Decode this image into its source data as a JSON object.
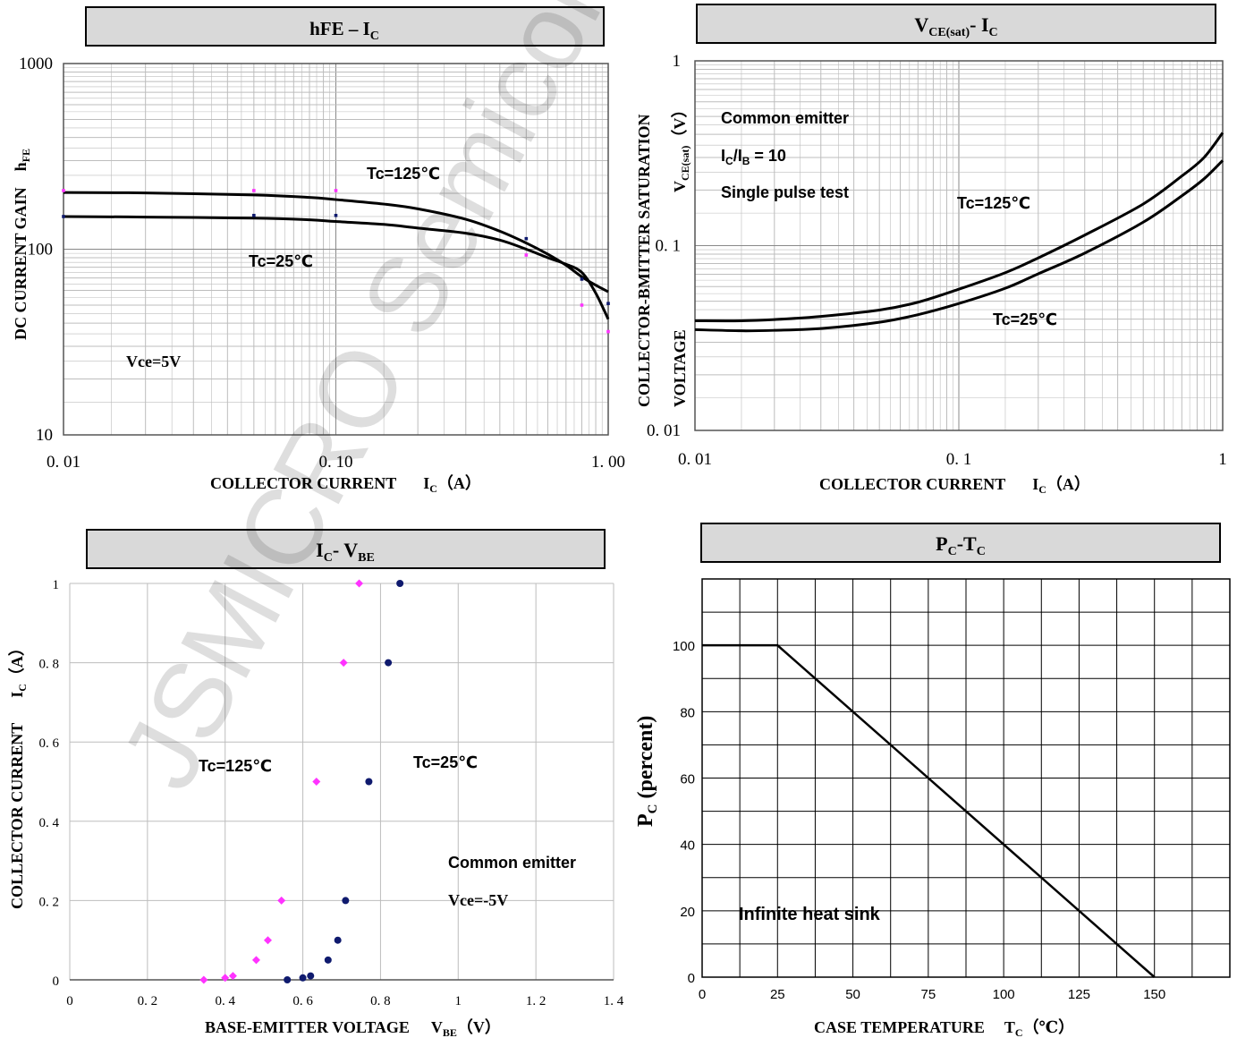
{
  "watermark": "JSMICRO Semiconductor",
  "colors": {
    "hot": "#ff33ff",
    "cold": "#0f1a6e",
    "grid": "#bdbdbd",
    "title_bg": "#d9d9d9"
  },
  "chart_data": [
    {
      "id": "hfe",
      "type": "line",
      "title": "hFE – I",
      "title_sub": "C",
      "xlabel": "COLLECTOR CURRENT",
      "xlabel_unit_main": "I",
      "xlabel_unit_sub": "C",
      "xlabel_unit_tail": "（A）",
      "ylabel_main": "DC CURRENT GAIN",
      "ylabel_sym": "h",
      "ylabel_sub": "FE",
      "xscale": "log",
      "yscale": "log",
      "xlim": [
        0.01,
        1.0
      ],
      "ylim": [
        10,
        1000
      ],
      "xticks": [
        0.01,
        0.1,
        1.0
      ],
      "xtick_labels": [
        "0. 01",
        "0. 10",
        "1. 00"
      ],
      "yticks": [
        10,
        100,
        1000
      ],
      "ytick_labels": [
        "10",
        "100",
        "1000"
      ],
      "annotations": [
        "Tc=125℃",
        "Tc=25℃",
        "Vce=5V"
      ],
      "series": [
        {
          "color": "#000000",
          "x": [
            0.01,
            0.02,
            0.05,
            0.08,
            0.1,
            0.15,
            0.2,
            0.3,
            0.4,
            0.5,
            0.6,
            0.7,
            0.8,
            0.9,
            1.0
          ],
          "y": [
            202,
            201,
            196,
            190,
            185,
            175,
            165,
            145,
            125,
            108,
            94,
            82,
            71,
            64,
            59
          ]
        },
        {
          "color": "#000000",
          "x": [
            0.01,
            0.02,
            0.05,
            0.08,
            0.1,
            0.15,
            0.2,
            0.3,
            0.4,
            0.5,
            0.6,
            0.7,
            0.8,
            0.9,
            1.0
          ],
          "y": [
            150,
            149,
            147,
            144,
            141,
            136,
            130,
            122,
            112,
            100,
            90,
            83,
            75,
            58,
            42
          ]
        }
      ],
      "points": [
        {
          "color": "#ff33ff",
          "x": [
            0.01,
            0.05,
            0.1,
            0.5,
            0.8,
            1.0
          ],
          "y": [
            207,
            207,
            207,
            93,
            50,
            36
          ]
        },
        {
          "color": "#0f1a6e",
          "x": [
            0.01,
            0.05,
            0.1,
            0.5,
            0.8,
            1.0
          ],
          "y": [
            150,
            152,
            152,
            114,
            69,
            51
          ]
        }
      ]
    },
    {
      "id": "vcesat",
      "type": "line",
      "title": "V",
      "title_sub": "CE(sat)",
      "title_tail": "- I",
      "title_tail_sub": "C",
      "xlabel": "COLLECTOR CURRENT",
      "xlabel_unit_main": "I",
      "xlabel_unit_sub": "C",
      "xlabel_unit_tail": "（A）",
      "ylabel_main": "COLLECTOR-BMITTER SATURATION",
      "ylabel_second": "VOLTAGE",
      "ylabel_sym": "V",
      "ylabel_sub": "CE(sat)",
      "ylabel_tail": "（V）",
      "xscale": "log",
      "yscale": "log",
      "xlim": [
        0.01,
        1
      ],
      "ylim": [
        0.01,
        1
      ],
      "xticks": [
        0.01,
        0.1,
        1
      ],
      "xtick_labels": [
        "0. 01",
        "0. 1",
        "1"
      ],
      "yticks": [
        0.01,
        0.1,
        1
      ],
      "ytick_labels": [
        "0. 01",
        "0. 1",
        "1"
      ],
      "annotations": [
        "Common emitter",
        "I",
        "C",
        "/I",
        "B",
        " = 10",
        "Single pulse test",
        "Tc=125℃",
        "Tc=25℃"
      ],
      "series": [
        {
          "color": "#000000",
          "x": [
            0.01,
            0.015,
            0.02,
            0.03,
            0.05,
            0.07,
            0.1,
            0.15,
            0.2,
            0.3,
            0.5,
            0.7,
            0.85,
            1.0
          ],
          "y": [
            0.0392,
            0.0392,
            0.0398,
            0.0414,
            0.0448,
            0.0494,
            0.0581,
            0.0714,
            0.0858,
            0.114,
            0.168,
            0.238,
            0.3,
            0.408
          ]
        },
        {
          "color": "#000000",
          "x": [
            0.01,
            0.015,
            0.02,
            0.03,
            0.05,
            0.07,
            0.1,
            0.15,
            0.2,
            0.3,
            0.5,
            0.7,
            0.85,
            1.0
          ],
          "y": [
            0.0351,
            0.0346,
            0.0348,
            0.0356,
            0.0385,
            0.0423,
            0.0486,
            0.0588,
            0.0704,
            0.0911,
            0.134,
            0.186,
            0.23,
            0.289
          ]
        }
      ]
    },
    {
      "id": "icvbe",
      "type": "scatter",
      "title": "I",
      "title_sub": "C",
      "title_tail": "- V",
      "title_tail_sub": "BE",
      "xlabel": "BASE-EMITTER VOLTAGE",
      "xlabel_unit_main": "V",
      "xlabel_unit_sub": "BE",
      "xlabel_unit_tail": "（V）",
      "ylabel_main": "COLLECTOR CURRENT",
      "ylabel_sym": "I",
      "ylabel_sub": "C",
      "ylabel_tail": "（A）",
      "xlim": [
        0,
        1.4
      ],
      "ylim": [
        0,
        1
      ],
      "xticks": [
        0,
        0.2,
        0.4,
        0.6,
        0.8,
        1,
        1.2,
        1.4
      ],
      "xtick_labels": [
        "0",
        "0. 2",
        "0. 4",
        "0. 6",
        "0. 8",
        "1",
        "1. 2",
        "1. 4"
      ],
      "yticks": [
        0,
        0.2,
        0.4,
        0.6,
        0.8,
        1
      ],
      "ytick_labels": [
        "0",
        "0. 2",
        "0. 4",
        "0. 6",
        "0. 8",
        "1"
      ],
      "annotations": [
        "Tc=125℃",
        "Tc=25℃",
        "Common emitter",
        "Vce=-5V"
      ],
      "points": [
        {
          "color": "#ff33ff",
          "shape": "diamond",
          "x": [
            0.345,
            0.4,
            0.42,
            0.48,
            0.51,
            0.545,
            0.635,
            0.705,
            0.745
          ],
          "y": [
            0.0,
            0.005,
            0.01,
            0.05,
            0.1,
            0.2,
            0.5,
            0.8,
            1.0
          ]
        },
        {
          "color": "#0f1a6e",
          "shape": "circle",
          "x": [
            0.56,
            0.6,
            0.62,
            0.665,
            0.69,
            0.71,
            0.77,
            0.82,
            0.85
          ],
          "y": [
            0.0,
            0.005,
            0.01,
            0.05,
            0.1,
            0.2,
            0.5,
            0.8,
            1.0
          ]
        }
      ]
    },
    {
      "id": "pctc",
      "type": "line",
      "title": "P",
      "title_sub": "C",
      "title_tail": "-T",
      "title_tail_sub": "C",
      "xlabel": "CASE TEMPERATURE",
      "xlabel_unit_main": "T",
      "xlabel_unit_sub": "C",
      "xlabel_unit_tail": "（℃）",
      "ylabel_sym": "P",
      "ylabel_sub": "C",
      "ylabel_tail": " (percent)",
      "xlim": [
        0,
        175
      ],
      "ylim": [
        0,
        120
      ],
      "xticks": [
        0,
        25,
        50,
        75,
        100,
        125,
        150
      ],
      "xtick_labels": [
        "0",
        "25",
        "50",
        "75",
        "100",
        "125",
        "150"
      ],
      "yticks": [
        0,
        20,
        40,
        60,
        80,
        100
      ],
      "ytick_labels": [
        "0",
        "20",
        "40",
        "60",
        "80",
        "100"
      ],
      "annotations": [
        "Infinite heat sink"
      ],
      "series": [
        {
          "color": "#000000",
          "x": [
            0,
            25,
            150
          ],
          "y": [
            100,
            100,
            0
          ]
        }
      ]
    }
  ]
}
